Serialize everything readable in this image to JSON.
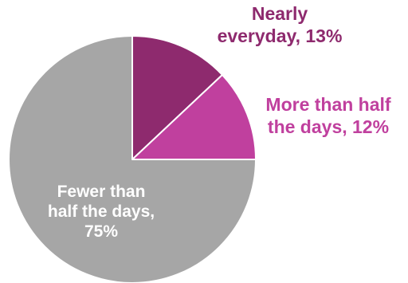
{
  "chart_data": {
    "type": "pie",
    "title": "",
    "start_angle_deg": 0,
    "direction": "clockwise",
    "slices": [
      {
        "label_lines": [
          "Nearly",
          "everyday, 13%"
        ],
        "value": 13,
        "color": "#8e2a6e",
        "label_color": "#8e2a6e"
      },
      {
        "label_lines": [
          "More than half",
          "the days, 12%"
        ],
        "value": 12,
        "color": "#c0409e",
        "label_color": "#c0409e"
      },
      {
        "label_lines": [
          "Fewer than",
          "half the days,",
          "75%"
        ],
        "value": 75,
        "color": "#a6a6a6",
        "label_color": "#ffffff"
      }
    ],
    "slice_border_color": "#ffffff"
  }
}
